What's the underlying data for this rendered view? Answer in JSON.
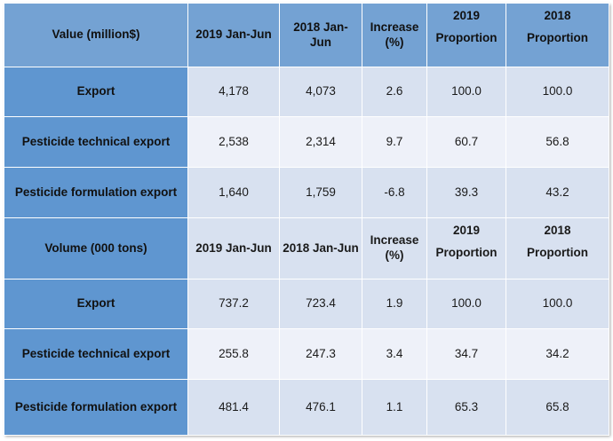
{
  "sections": [
    {
      "header": {
        "label": "Value (million$)",
        "col1": "2019 Jan-Jun",
        "col2_line1": "2018 Jan-",
        "col2_line2": "Jun",
        "col3_line1": "Increase",
        "col3_line2": "(%)",
        "col4_line1": "2019",
        "col4_line2": "Proportion",
        "col5_line1": "2018",
        "col5_line2": "Proportion"
      },
      "rows": [
        {
          "label": "Export",
          "c1": "4,178",
          "c2": "4,073",
          "c3": "2.6",
          "c4": "100.0",
          "c5": "100.0"
        },
        {
          "label": "Pesticide technical export",
          "c1": "2,538",
          "c2": "2,314",
          "c3": "9.7",
          "c4": "60.7",
          "c5": "56.8"
        },
        {
          "label": "Pesticide formulation export",
          "c1": "1,640",
          "c2": "1,759",
          "c3": "-6.8",
          "c4": "39.3",
          "c5": "43.2"
        }
      ]
    },
    {
      "header": {
        "label": "Volume (000 tons)",
        "col1": "2019 Jan-Jun",
        "col2": "2018 Jan-Jun",
        "col3_line1": "Increase",
        "col3_line2": "(%)",
        "col4_line1": "2019",
        "col4_line2": "Proportion",
        "col5_line1": "2018",
        "col5_line2": "Proportion"
      },
      "rows": [
        {
          "label": "Export",
          "c1": "737.2",
          "c2": "723.4",
          "c3": "1.9",
          "c4": "100.0",
          "c5": "100.0"
        },
        {
          "label": "Pesticide technical export",
          "c1": "255.8",
          "c2": "247.3",
          "c3": "3.4",
          "c4": "34.7",
          "c5": "34.2"
        },
        {
          "label": "Pesticide formulation export",
          "c1": "481.4",
          "c2": "476.1",
          "c3": "1.1",
          "c4": "65.3",
          "c5": "65.8"
        }
      ]
    }
  ]
}
